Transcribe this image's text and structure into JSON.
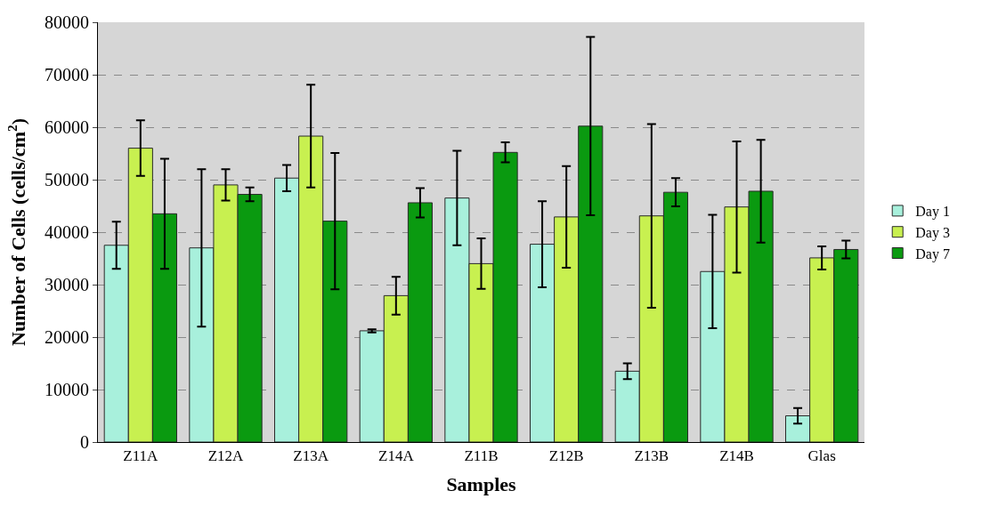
{
  "chart_data": {
    "type": "bar",
    "xlabel": "Samples",
    "ylabel": "Number of Cells (cells/cm$^{2}$)",
    "categories": [
      "Z11A",
      "Z12A",
      "Z13A",
      "Z14A",
      "Z11B",
      "Z12B",
      "Z13B",
      "Z14B",
      "Glas"
    ],
    "series": [
      {
        "name": "Day 1",
        "color": "#a8f0dc",
        "values": [
          37500,
          37000,
          50300,
          21200,
          46500,
          37700,
          13500,
          32500,
          5000
        ],
        "errors": [
          4500,
          15000,
          2500,
          300,
          9000,
          8200,
          1500,
          10800,
          1500
        ]
      },
      {
        "name": "Day 3",
        "color": "#c8f050",
        "values": [
          56000,
          49000,
          58300,
          27900,
          34000,
          42900,
          43100,
          44800,
          35100
        ],
        "errors": [
          5300,
          3000,
          9800,
          3600,
          4800,
          9700,
          17500,
          12500,
          2200
        ]
      },
      {
        "name": "Day 7",
        "color": "#0a9a10",
        "values": [
          43500,
          47200,
          42100,
          45600,
          55200,
          60200,
          47600,
          47800,
          36700
        ],
        "errors": [
          10500,
          1300,
          13000,
          2800,
          1900,
          17000,
          2700,
          9800,
          1700
        ]
      }
    ],
    "ylim": [
      0,
      80000
    ],
    "yticks": [
      0,
      10000,
      20000,
      30000,
      40000,
      50000,
      60000,
      70000,
      80000
    ],
    "grid": "y",
    "legend": "right"
  }
}
